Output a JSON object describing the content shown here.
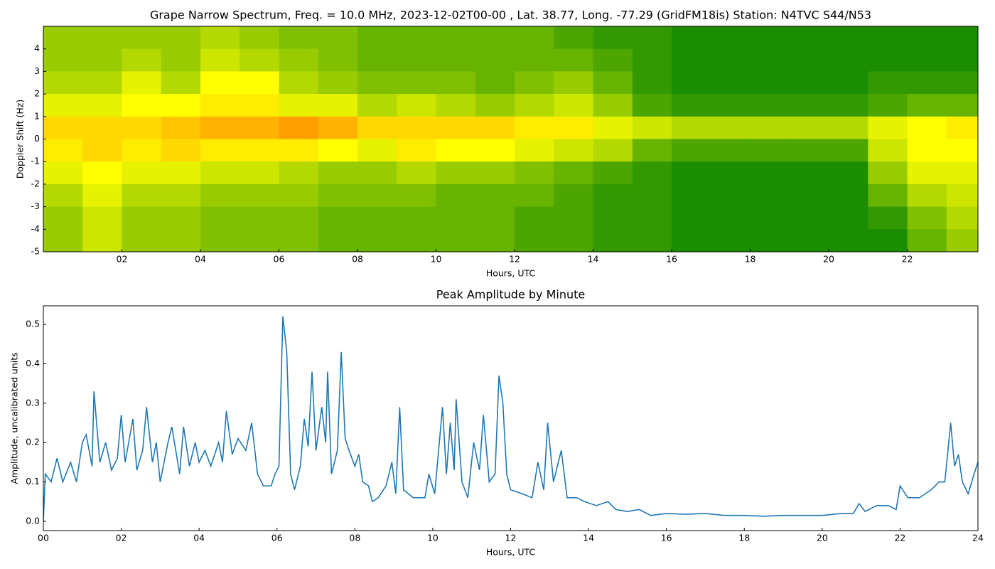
{
  "chart_data": [
    {
      "type": "heatmap",
      "title": "Grape Narrow Spectrum, Freq. = 10.0 MHz, 2023-12-02T00-00 , Lat.  38.77, Long. -77.29 (GridFM18is) Station: N4TVC S44/N53",
      "x_label": "Hours, UTC",
      "y_label": "Doppler Shift (Hz)",
      "xlim": [
        0,
        23.8
      ],
      "ylim": [
        -5,
        5
      ],
      "xticks": [
        {
          "value": 2,
          "label": "02"
        },
        {
          "value": 4,
          "label": "04"
        },
        {
          "value": 6,
          "label": "06"
        },
        {
          "value": 8,
          "label": "08"
        },
        {
          "value": 10,
          "label": "10"
        },
        {
          "value": 12,
          "label": "12"
        },
        {
          "value": 14,
          "label": "14"
        },
        {
          "value": 16,
          "label": "16"
        },
        {
          "value": 18,
          "label": "18"
        },
        {
          "value": 20,
          "label": "20"
        },
        {
          "value": 22,
          "label": "22"
        }
      ],
      "yticks": [
        -5,
        -4,
        -3,
        -2,
        -1,
        0,
        1,
        2,
        3,
        4
      ],
      "colorscale": [
        "#008000",
        "#ffff00",
        "#ff4000"
      ],
      "x_bins": [
        0,
        1,
        2,
        3,
        4,
        5,
        6,
        7,
        8,
        9,
        10,
        11,
        12,
        13,
        14,
        15,
        16,
        17,
        18,
        19,
        20,
        21,
        22,
        23,
        24
      ],
      "y_bins": [
        5,
        4,
        3,
        2,
        1,
        0,
        -1,
        -2,
        -3,
        -4,
        -5
      ],
      "z": [
        [
          0.3,
          0.3,
          0.3,
          0.3,
          0.35,
          0.3,
          0.25,
          0.25,
          0.2,
          0.2,
          0.2,
          0.2,
          0.2,
          0.15,
          0.1,
          0.1,
          0.05,
          0.05,
          0.05,
          0.05,
          0.05,
          0.05,
          0.05,
          0.05
        ],
        [
          0.3,
          0.3,
          0.35,
          0.3,
          0.4,
          0.35,
          0.3,
          0.25,
          0.2,
          0.2,
          0.2,
          0.2,
          0.2,
          0.2,
          0.15,
          0.1,
          0.05,
          0.05,
          0.05,
          0.05,
          0.05,
          0.05,
          0.05,
          0.05
        ],
        [
          0.35,
          0.35,
          0.45,
          0.35,
          0.5,
          0.5,
          0.35,
          0.3,
          0.25,
          0.25,
          0.25,
          0.2,
          0.25,
          0.3,
          0.2,
          0.1,
          0.05,
          0.05,
          0.05,
          0.05,
          0.05,
          0.1,
          0.1,
          0.1
        ],
        [
          0.45,
          0.45,
          0.5,
          0.5,
          0.55,
          0.55,
          0.45,
          0.45,
          0.35,
          0.4,
          0.35,
          0.3,
          0.35,
          0.4,
          0.3,
          0.15,
          0.1,
          0.1,
          0.1,
          0.1,
          0.1,
          0.15,
          0.2,
          0.2
        ],
        [
          0.6,
          0.6,
          0.6,
          0.65,
          0.7,
          0.7,
          0.75,
          0.7,
          0.6,
          0.6,
          0.6,
          0.6,
          0.55,
          0.55,
          0.45,
          0.4,
          0.35,
          0.35,
          0.35,
          0.35,
          0.35,
          0.45,
          0.5,
          0.55
        ],
        [
          0.55,
          0.6,
          0.55,
          0.6,
          0.55,
          0.55,
          0.55,
          0.5,
          0.45,
          0.55,
          0.5,
          0.5,
          0.45,
          0.4,
          0.35,
          0.2,
          0.15,
          0.15,
          0.15,
          0.15,
          0.15,
          0.4,
          0.5,
          0.5
        ],
        [
          0.45,
          0.5,
          0.45,
          0.45,
          0.4,
          0.4,
          0.35,
          0.3,
          0.3,
          0.35,
          0.3,
          0.3,
          0.25,
          0.2,
          0.15,
          0.1,
          0.05,
          0.05,
          0.05,
          0.05,
          0.05,
          0.3,
          0.45,
          0.45
        ],
        [
          0.35,
          0.45,
          0.35,
          0.35,
          0.3,
          0.3,
          0.3,
          0.25,
          0.25,
          0.25,
          0.2,
          0.2,
          0.2,
          0.15,
          0.1,
          0.1,
          0.05,
          0.05,
          0.05,
          0.05,
          0.05,
          0.2,
          0.35,
          0.4
        ],
        [
          0.3,
          0.4,
          0.3,
          0.3,
          0.25,
          0.25,
          0.25,
          0.2,
          0.2,
          0.2,
          0.2,
          0.2,
          0.15,
          0.15,
          0.1,
          0.1,
          0.05,
          0.05,
          0.05,
          0.05,
          0.05,
          0.1,
          0.25,
          0.35
        ],
        [
          0.3,
          0.4,
          0.3,
          0.3,
          0.25,
          0.25,
          0.25,
          0.2,
          0.2,
          0.2,
          0.2,
          0.2,
          0.15,
          0.15,
          0.1,
          0.1,
          0.05,
          0.05,
          0.05,
          0.05,
          0.05,
          0.05,
          0.2,
          0.3
        ]
      ]
    },
    {
      "type": "line",
      "title": "Peak Amplitude by Minute",
      "x_label": "Hours, UTC",
      "y_label": "Amplitude, uncalibrated units",
      "xlim": [
        0,
        24
      ],
      "ylim": [
        -0.0235,
        0.547
      ],
      "xticks": [
        {
          "value": 0,
          "label": "00"
        },
        {
          "value": 2,
          "label": "02"
        },
        {
          "value": 4,
          "label": "04"
        },
        {
          "value": 6,
          "label": "06"
        },
        {
          "value": 8,
          "label": "08"
        },
        {
          "value": 10,
          "label": "10"
        },
        {
          "value": 12,
          "label": "12"
        },
        {
          "value": 14,
          "label": "14"
        },
        {
          "value": 16,
          "label": "16"
        },
        {
          "value": 18,
          "label": "18"
        },
        {
          "value": 20,
          "label": "20"
        },
        {
          "value": 22,
          "label": "22"
        },
        {
          "value": 24,
          "label": "24"
        }
      ],
      "yticks": [
        {
          "value": 0,
          "label": "0.0"
        },
        0.1,
        0.2,
        0.3,
        0.4,
        0.5
      ],
      "color": "#1f77b4",
      "x": [
        0,
        0.05,
        0.2,
        0.35,
        0.5,
        0.7,
        0.85,
        1.0,
        1.1,
        1.25,
        1.3,
        1.45,
        1.6,
        1.75,
        1.9,
        2.0,
        2.1,
        2.3,
        2.4,
        2.55,
        2.65,
        2.8,
        2.9,
        3.0,
        3.2,
        3.3,
        3.5,
        3.6,
        3.75,
        3.9,
        4.0,
        4.15,
        4.3,
        4.5,
        4.6,
        4.7,
        4.85,
        5.0,
        5.2,
        5.35,
        5.5,
        5.65,
        5.85,
        5.95,
        6.05,
        6.15,
        6.25,
        6.35,
        6.45,
        6.6,
        6.7,
        6.8,
        6.9,
        7.0,
        7.15,
        7.25,
        7.3,
        7.4,
        7.55,
        7.65,
        7.75,
        7.85,
        8.0,
        8.1,
        8.2,
        8.35,
        8.45,
        8.6,
        8.8,
        8.95,
        9.05,
        9.15,
        9.25,
        9.5,
        9.8,
        9.9,
        10.05,
        10.25,
        10.35,
        10.45,
        10.55,
        10.6,
        10.75,
        10.9,
        11.05,
        11.2,
        11.3,
        11.45,
        11.6,
        11.7,
        11.8,
        11.9,
        12.0,
        12.3,
        12.55,
        12.7,
        12.85,
        12.95,
        13.1,
        13.3,
        13.45,
        13.7,
        13.9,
        14.2,
        14.5,
        14.7,
        15.0,
        15.3,
        15.6,
        16.0,
        16.5,
        17.0,
        17.5,
        18.0,
        18.5,
        19.0,
        19.5,
        20.0,
        20.5,
        20.8,
        20.95,
        21.1,
        21.4,
        21.7,
        21.9,
        22.0,
        22.2,
        22.5,
        22.8,
        23.0,
        23.15,
        23.3,
        23.4,
        23.5,
        23.6,
        23.75,
        23.9,
        24.0
      ],
      "values": [
        0,
        0.12,
        0.1,
        0.16,
        0.1,
        0.15,
        0.1,
        0.2,
        0.22,
        0.14,
        0.33,
        0.15,
        0.2,
        0.13,
        0.16,
        0.27,
        0.15,
        0.26,
        0.13,
        0.18,
        0.29,
        0.15,
        0.2,
        0.1,
        0.2,
        0.24,
        0.12,
        0.24,
        0.14,
        0.2,
        0.15,
        0.18,
        0.14,
        0.2,
        0.15,
        0.28,
        0.17,
        0.21,
        0.18,
        0.25,
        0.12,
        0.09,
        0.09,
        0.12,
        0.14,
        0.52,
        0.43,
        0.12,
        0.08,
        0.14,
        0.26,
        0.19,
        0.38,
        0.18,
        0.29,
        0.2,
        0.38,
        0.12,
        0.18,
        0.43,
        0.21,
        0.18,
        0.14,
        0.17,
        0.1,
        0.09,
        0.05,
        0.06,
        0.09,
        0.15,
        0.07,
        0.29,
        0.08,
        0.06,
        0.06,
        0.12,
        0.07,
        0.29,
        0.12,
        0.25,
        0.13,
        0.31,
        0.1,
        0.06,
        0.2,
        0.13,
        0.27,
        0.1,
        0.12,
        0.37,
        0.3,
        0.12,
        0.08,
        0.07,
        0.06,
        0.15,
        0.08,
        0.25,
        0.1,
        0.18,
        0.06,
        0.06,
        0.05,
        0.04,
        0.05,
        0.03,
        0.025,
        0.03,
        0.015,
        0.02,
        0.018,
        0.02,
        0.015,
        0.015,
        0.013,
        0.015,
        0.015,
        0.015,
        0.02,
        0.02,
        0.045,
        0.025,
        0.04,
        0.04,
        0.03,
        0.09,
        0.06,
        0.06,
        0.08,
        0.1,
        0.1,
        0.25,
        0.14,
        0.17,
        0.1,
        0.07,
        0.12,
        0.15
      ]
    }
  ]
}
